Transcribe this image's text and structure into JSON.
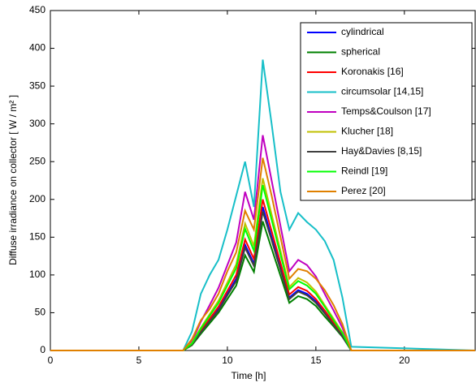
{
  "chart_data": {
    "type": "line",
    "xlabel": "Time [h]",
    "ylabel": "Diffuse irradiance on collector [ W / m² ]",
    "x": [
      0,
      7.5,
      8,
      8.5,
      9,
      9.5,
      10,
      10.5,
      11,
      11.5,
      12,
      12.5,
      13,
      13.5,
      14,
      14.5,
      15,
      15.5,
      16,
      16.5,
      17,
      24
    ],
    "xlim": [
      0,
      24
    ],
    "xticks": [
      0,
      5,
      10,
      15,
      20
    ],
    "ylim": [
      0,
      450
    ],
    "yticks": [
      0,
      50,
      100,
      150,
      200,
      250,
      300,
      350,
      400,
      450
    ],
    "legend": "upper right",
    "series": [
      {
        "name": "cylindrical",
        "color": "#0000ff",
        "values": [
          0,
          0,
          8,
          25,
          40,
          55,
          75,
          95,
          140,
          115,
          190,
          150,
          110,
          70,
          80,
          75,
          65,
          50,
          35,
          20,
          0,
          0
        ]
      },
      {
        "name": "spherical",
        "color": "#008000",
        "values": [
          0,
          0,
          7,
          22,
          36,
          50,
          68,
          86,
          126,
          104,
          171,
          135,
          99,
          63,
          72,
          68,
          59,
          45,
          32,
          18,
          0,
          0
        ]
      },
      {
        "name": "Koronakis [16]",
        "color": "#ff0000",
        "values": [
          0,
          0,
          8,
          26,
          42,
          58,
          79,
          100,
          147,
          121,
          200,
          158,
          116,
          74,
          84,
          79,
          68,
          53,
          37,
          21,
          0,
          0
        ]
      },
      {
        "name": "circumsolar [14,15]",
        "color": "#17bfc8",
        "values": [
          0,
          0,
          25,
          75,
          100,
          120,
          160,
          205,
          250,
          190,
          385,
          300,
          210,
          160,
          182,
          170,
          160,
          145,
          120,
          70,
          5,
          0
        ]
      },
      {
        "name": "Temps&Coulson [17]",
        "color": "#c000c0",
        "values": [
          0,
          0,
          12,
          38,
          60,
          83,
          113,
          143,
          210,
          173,
          285,
          225,
          165,
          105,
          120,
          113,
          98,
          75,
          53,
          30,
          0,
          0
        ]
      },
      {
        "name": "Klucher [18]",
        "color": "#c0c000",
        "values": [
          0,
          0,
          10,
          30,
          48,
          66,
          90,
          114,
          168,
          138,
          228,
          180,
          132,
          84,
          96,
          90,
          78,
          60,
          42,
          24,
          0,
          0
        ]
      },
      {
        "name": "Hay&Davies [8,15]",
        "color": "#404040",
        "values": [
          0,
          0,
          8,
          24,
          39,
          53,
          73,
          92,
          136,
          112,
          184,
          146,
          107,
          68,
          78,
          73,
          63,
          49,
          34,
          19,
          0,
          0
        ]
      },
      {
        "name": "Reindl [19]",
        "color": "#00ff00",
        "values": [
          0,
          0,
          9,
          29,
          46,
          63,
          86,
          109,
          161,
          132,
          219,
          173,
          127,
          81,
          92,
          86,
          75,
          58,
          40,
          23,
          0,
          0
        ]
      },
      {
        "name": "Perez [20]",
        "color": "#e08000",
        "values": [
          0,
          0,
          15,
          40,
          55,
          75,
          105,
          130,
          185,
          160,
          255,
          205,
          150,
          95,
          108,
          105,
          95,
          80,
          60,
          35,
          0,
          0
        ]
      }
    ]
  }
}
